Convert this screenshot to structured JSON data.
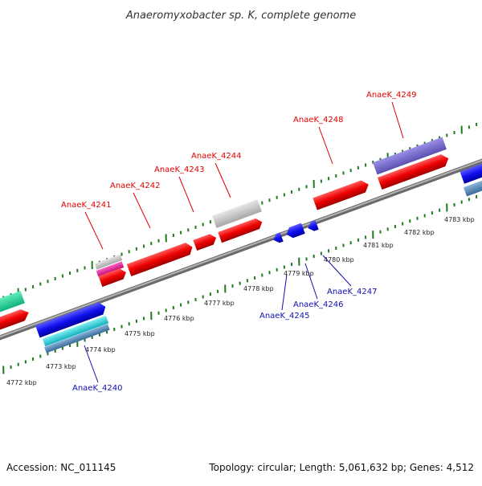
{
  "title": "Anaeromyxobacter sp. K, complete genome",
  "footer": {
    "accession": "Accession: NC_011145",
    "summary": "Topology: circular; Length: 5,061,632 bp; Genes: 4,512"
  },
  "colors": {
    "forward_label": "#e00000",
    "reverse_label": "#1010b0",
    "tick": "#1f7a1f",
    "backbone": "#808080"
  },
  "scale": {
    "unit": "kbp",
    "ticks": [
      "4772 kbp",
      "4773 kbp",
      "4774 kbp",
      "4775 kbp",
      "4776 kbp",
      "4777 kbp",
      "4778 kbp",
      "4779 kbp",
      "4780 kbp",
      "4781 kbp",
      "4782 kbp",
      "4783 kbp"
    ]
  },
  "genes": [
    {
      "label": "AnaeK_4240",
      "strand": "reverse"
    },
    {
      "label": "AnaeK_4241",
      "strand": "forward"
    },
    {
      "label": "AnaeK_4242",
      "strand": "forward"
    },
    {
      "label": "AnaeK_4243",
      "strand": "forward"
    },
    {
      "label": "AnaeK_4244",
      "strand": "forward"
    },
    {
      "label": "AnaeK_4245",
      "strand": "reverse"
    },
    {
      "label": "AnaeK_4246",
      "strand": "reverse"
    },
    {
      "label": "AnaeK_4247",
      "strand": "reverse"
    },
    {
      "label": "AnaeK_4248",
      "strand": "forward"
    },
    {
      "label": "AnaeK_4249",
      "strand": "forward"
    }
  ]
}
